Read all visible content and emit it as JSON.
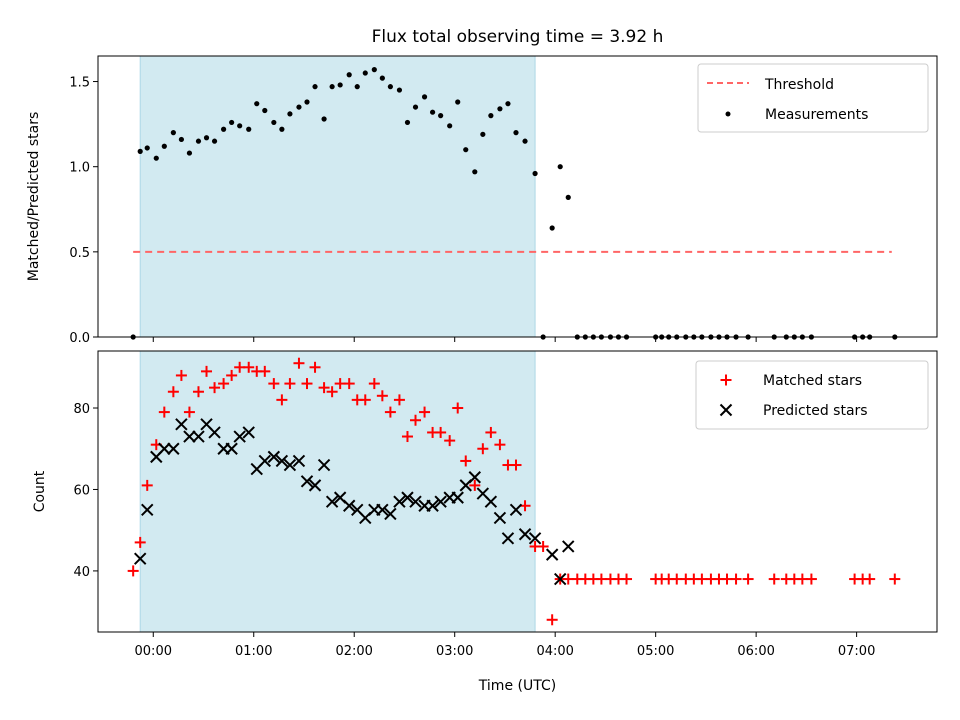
{
  "colors": {
    "shade": "#add8e6",
    "threshold": "#ff6666",
    "measurements": "#000000",
    "matched": "#ff0000",
    "predicted": "#000000"
  },
  "chart_data": [
    {
      "type": "scatter",
      "title": "Flux total observing time = 3.92 h",
      "xlabel": "",
      "ylabel": "Matched/Predicted stars",
      "x_unit": "hours since 00:00 UTC",
      "xlim": [
        -0.55,
        7.8
      ],
      "ylim": [
        0,
        1.65
      ],
      "yticks": [
        0.0,
        0.5,
        1.0,
        1.5
      ],
      "ytick_labels": [
        "0.0",
        "0.5",
        "1.0",
        "1.5"
      ],
      "shaded_span": [
        -0.13,
        3.8
      ],
      "legend": {
        "position": "top-right",
        "entries": [
          "Threshold",
          "Measurements"
        ]
      },
      "threshold": {
        "name": "Threshold",
        "y": 0.5,
        "x": [
          -0.2,
          7.35
        ],
        "style": "dashed"
      },
      "series": [
        {
          "name": "Measurements",
          "marker": "dot",
          "x": [
            -0.2,
            -0.13,
            -0.06,
            0.03,
            0.11,
            0.2,
            0.28,
            0.36,
            0.45,
            0.53,
            0.61,
            0.7,
            0.78,
            0.86,
            0.95,
            1.03,
            1.11,
            1.2,
            1.28,
            1.36,
            1.45,
            1.53,
            1.61,
            1.7,
            1.78,
            1.86,
            1.95,
            2.03,
            2.11,
            2.2,
            2.28,
            2.36,
            2.45,
            2.53,
            2.61,
            2.7,
            2.78,
            2.86,
            2.95,
            3.03,
            3.11,
            3.2,
            3.28,
            3.36,
            3.45,
            3.53,
            3.61,
            3.7,
            3.8,
            3.88,
            3.97,
            4.05,
            4.13,
            4.22,
            4.3,
            4.38,
            4.46,
            4.55,
            4.63,
            4.71,
            5.0,
            5.06,
            5.13,
            5.21,
            5.3,
            5.38,
            5.46,
            5.55,
            5.63,
            5.71,
            5.8,
            5.92,
            6.18,
            6.3,
            6.38,
            6.46,
            6.55,
            6.98,
            7.06,
            7.13,
            7.38
          ],
          "y": [
            0.0,
            1.09,
            1.11,
            1.05,
            1.12,
            1.2,
            1.16,
            1.08,
            1.15,
            1.17,
            1.15,
            1.22,
            1.26,
            1.24,
            1.22,
            1.37,
            1.33,
            1.26,
            1.22,
            1.31,
            1.35,
            1.38,
            1.47,
            1.28,
            1.47,
            1.48,
            1.54,
            1.47,
            1.55,
            1.57,
            1.52,
            1.47,
            1.45,
            1.26,
            1.35,
            1.41,
            1.32,
            1.3,
            1.24,
            1.38,
            1.1,
            0.97,
            1.19,
            1.3,
            1.34,
            1.37,
            1.2,
            1.15,
            0.96,
            0.0,
            0.64,
            1.0,
            0.82,
            0.0,
            0.0,
            0.0,
            0.0,
            0.0,
            0.0,
            0.0,
            0.0,
            0.0,
            0.0,
            0.0,
            0.0,
            0.0,
            0.0,
            0.0,
            0.0,
            0.0,
            0.0,
            0.0,
            0.0,
            0.0,
            0.0,
            0.0,
            0.0,
            0.0,
            0.0,
            0.0,
            0.0
          ]
        }
      ]
    },
    {
      "type": "scatter",
      "title": "",
      "xlabel": "Time (UTC)",
      "ylabel": "Count",
      "x_unit": "hours since 00:00 UTC",
      "xlim": [
        -0.55,
        7.8
      ],
      "ylim": [
        25,
        94
      ],
      "xticks": [
        0,
        1,
        2,
        3,
        4,
        5,
        6,
        7
      ],
      "xtick_labels": [
        "00:00",
        "01:00",
        "02:00",
        "03:00",
        "04:00",
        "05:00",
        "06:00",
        "07:00"
      ],
      "yticks": [
        40,
        60,
        80
      ],
      "ytick_labels": [
        "40",
        "60",
        "80"
      ],
      "shaded_span": [
        -0.13,
        3.8
      ],
      "legend": {
        "position": "top-right",
        "entries": [
          "Matched stars",
          "Predicted stars"
        ]
      },
      "series": [
        {
          "name": "Matched stars",
          "marker": "plus",
          "x": [
            -0.2,
            -0.13,
            -0.06,
            0.03,
            0.11,
            0.2,
            0.28,
            0.36,
            0.45,
            0.53,
            0.61,
            0.7,
            0.78,
            0.86,
            0.95,
            1.03,
            1.11,
            1.2,
            1.28,
            1.36,
            1.45,
            1.53,
            1.61,
            1.7,
            1.78,
            1.86,
            1.95,
            2.03,
            2.11,
            2.2,
            2.28,
            2.36,
            2.45,
            2.53,
            2.61,
            2.7,
            2.78,
            2.86,
            2.95,
            3.03,
            3.11,
            3.2,
            3.28,
            3.36,
            3.45,
            3.53,
            3.61,
            3.7,
            3.8,
            3.88,
            3.97,
            4.05,
            4.13,
            4.22,
            4.3,
            4.38,
            4.46,
            4.55,
            4.63,
            4.71,
            5.0,
            5.06,
            5.13,
            5.21,
            5.3,
            5.38,
            5.46,
            5.55,
            5.63,
            5.71,
            5.8,
            5.92,
            6.18,
            6.3,
            6.38,
            6.46,
            6.55,
            6.98,
            7.06,
            7.13,
            7.38
          ],
          "y": [
            40,
            47,
            61,
            71,
            79,
            84,
            88,
            79,
            84,
            89,
            85,
            86,
            88,
            90,
            90,
            89,
            89,
            86,
            82,
            86,
            91,
            86,
            90,
            85,
            84,
            86,
            86,
            82,
            82,
            86,
            83,
            79,
            82,
            73,
            77,
            79,
            74,
            74,
            72,
            80,
            67,
            61,
            70,
            74,
            71,
            66,
            66,
            56,
            46,
            46,
            28,
            38,
            38,
            38,
            38,
            38,
            38,
            38,
            38,
            38,
            38,
            38,
            38,
            38,
            38,
            38,
            38,
            38,
            38,
            38,
            38,
            38,
            38,
            38,
            38,
            38,
            38,
            38,
            38,
            38,
            38
          ]
        },
        {
          "name": "Predicted stars",
          "marker": "x",
          "x": [
            -0.13,
            -0.06,
            0.03,
            0.11,
            0.2,
            0.28,
            0.36,
            0.45,
            0.53,
            0.61,
            0.7,
            0.78,
            0.86,
            0.95,
            1.03,
            1.11,
            1.2,
            1.28,
            1.36,
            1.45,
            1.53,
            1.61,
            1.7,
            1.78,
            1.86,
            1.95,
            2.03,
            2.11,
            2.2,
            2.28,
            2.36,
            2.45,
            2.53,
            2.61,
            2.7,
            2.78,
            2.86,
            2.95,
            3.03,
            3.11,
            3.2,
            3.28,
            3.36,
            3.45,
            3.53,
            3.61,
            3.7,
            3.8,
            3.97,
            4.05,
            4.13
          ],
          "y": [
            43,
            55,
            68,
            70,
            70,
            76,
            73,
            73,
            76,
            74,
            70,
            70,
            73,
            74,
            65,
            67,
            68,
            67,
            66,
            67,
            62,
            61,
            66,
            57,
            58,
            56,
            55,
            53,
            55,
            55,
            54,
            57,
            58,
            57,
            56,
            56,
            57,
            58,
            58,
            61,
            63,
            59,
            57,
            53,
            48,
            55,
            49,
            48,
            44,
            38,
            46
          ]
        }
      ]
    }
  ]
}
